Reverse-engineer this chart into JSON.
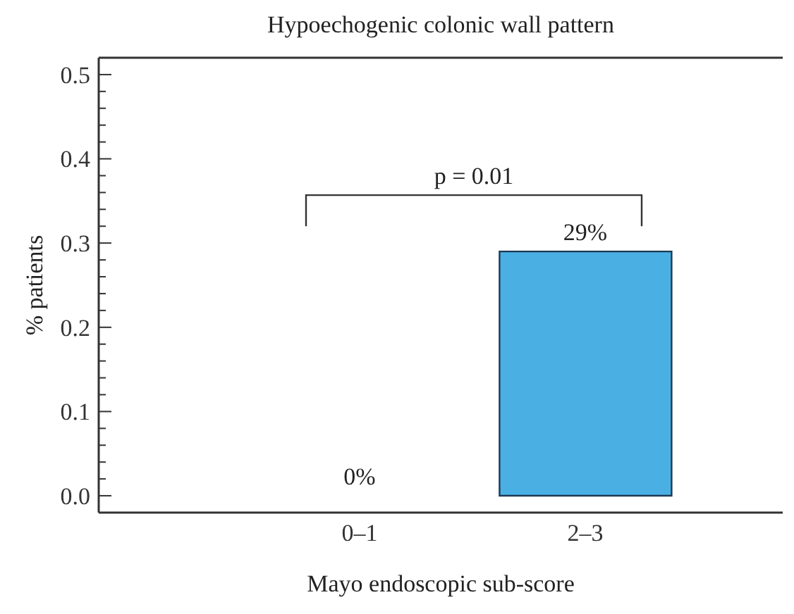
{
  "chart_data": {
    "type": "bar",
    "title": "Hypoechogenic colonic wall pattern",
    "xlabel": "Mayo endoscopic sub-score",
    "ylabel": "% patients",
    "categories": [
      "0–1",
      "2–3"
    ],
    "values": [
      0,
      0.29
    ],
    "color": "#4ab0e4",
    "value_labels": [
      "0%",
      "29%"
    ],
    "ylim": [
      -0.02,
      0.52
    ],
    "yticks": [
      {
        "value": 0,
        "label": "0.0"
      },
      {
        "value": 0.02,
        "label": null
      },
      {
        "value": 0.04,
        "label": null
      },
      {
        "value": 0.06,
        "label": null
      },
      {
        "value": 0.08,
        "label": null
      },
      {
        "value": 0.1,
        "label": "0.1"
      },
      {
        "value": 0.12,
        "label": null
      },
      {
        "value": 0.14,
        "label": null
      },
      {
        "value": 0.16,
        "label": null
      },
      {
        "value": 0.18,
        "label": null
      },
      {
        "value": 0.2,
        "label": "0.2"
      },
      {
        "value": 0.22,
        "label": null
      },
      {
        "value": 0.24,
        "label": null
      },
      {
        "value": 0.26,
        "label": null
      },
      {
        "value": 0.28,
        "label": null
      },
      {
        "value": 0.3,
        "label": "0.3"
      },
      {
        "value": 0.32,
        "label": null
      },
      {
        "value": 0.34,
        "label": null
      },
      {
        "value": 0.36,
        "label": null
      },
      {
        "value": 0.38,
        "label": null
      },
      {
        "value": 0.4,
        "label": "0.4"
      },
      {
        "value": 0.42,
        "label": null
      },
      {
        "value": 0.44,
        "label": null
      },
      {
        "value": 0.46,
        "label": null
      },
      {
        "value": 0.48,
        "label": null
      },
      {
        "value": 0.5,
        "label": "0.5"
      }
    ],
    "annotations": [
      "p = 0.01"
    ]
  }
}
